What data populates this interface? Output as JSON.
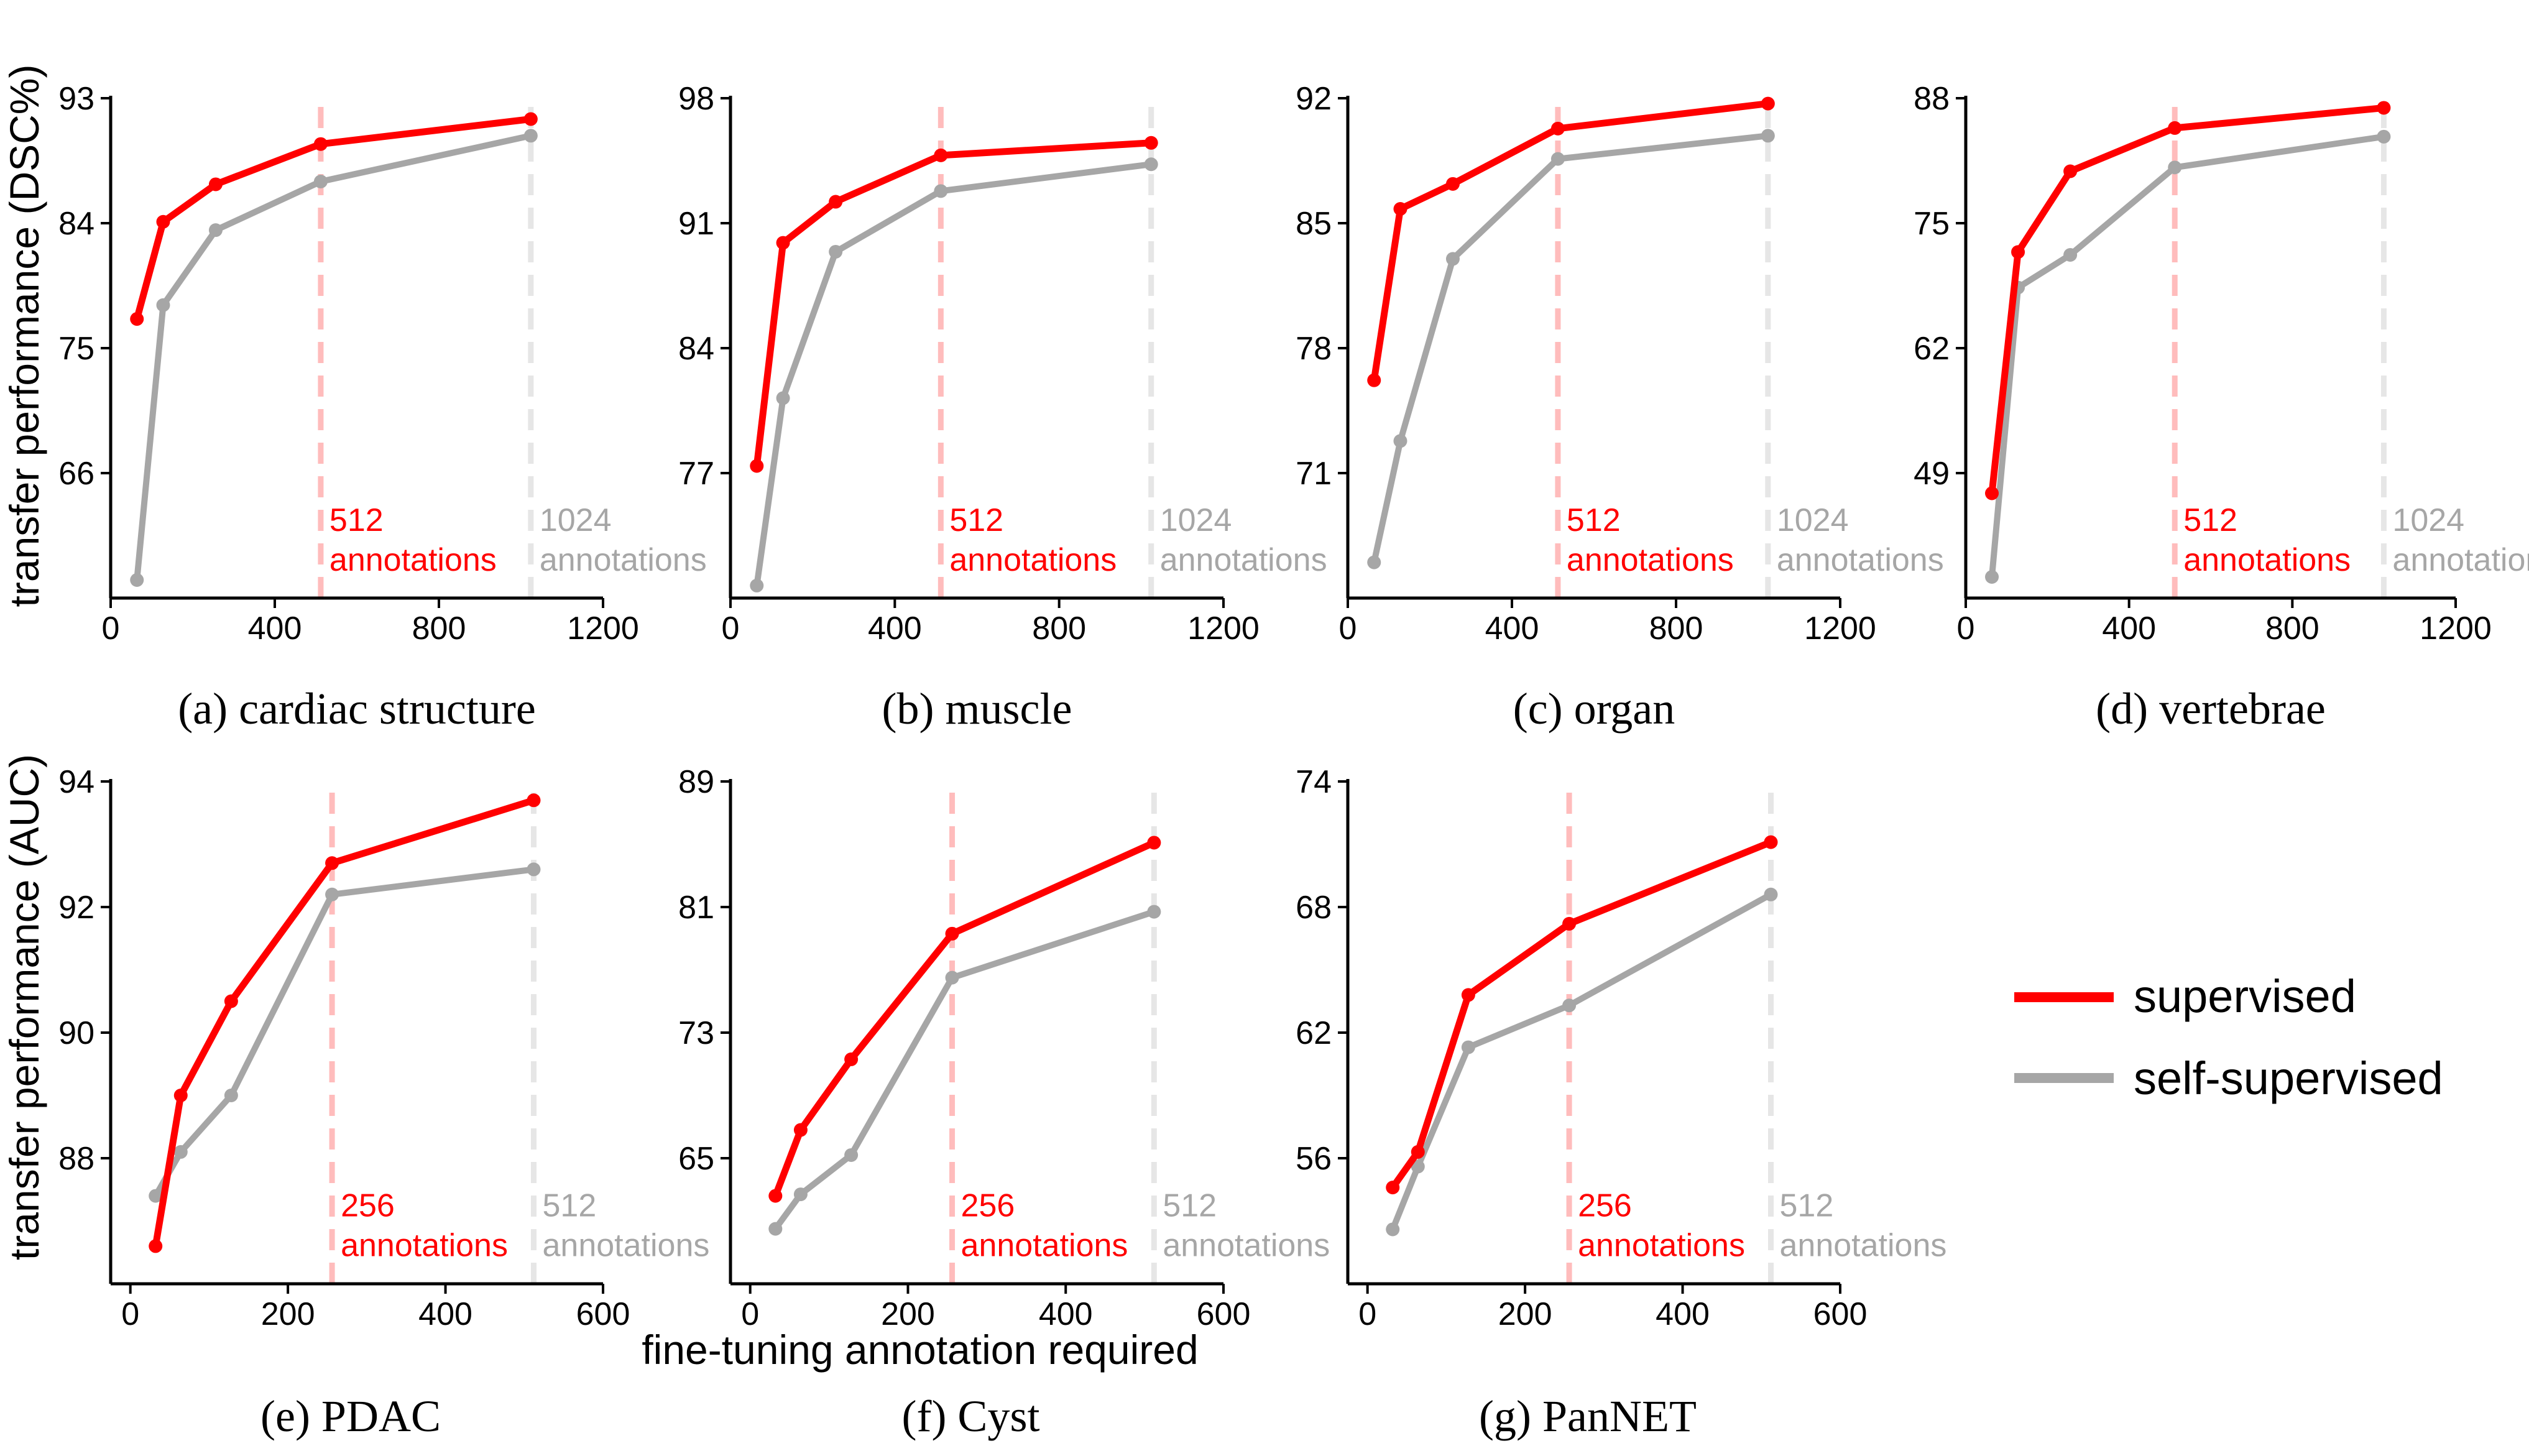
{
  "figure": {
    "ylabel_top": "transfer performance (DSC%)",
    "ylabel_bottom": "transfer performance (AUC)",
    "xlabel": "fine-tuning annotation required",
    "legend": [
      {
        "label": "supervised",
        "color": "#ff0000"
      },
      {
        "label": "self-supervised",
        "color": "#a6a6a6"
      }
    ],
    "colors": {
      "supervised": "#ff0000",
      "self_supervised": "#a6a6a6",
      "marker_red": "#ffbcbc",
      "marker_gray": "#e6e6e6"
    }
  },
  "chart_data": [
    {
      "type": "line",
      "caption": "(a) cardiac structure",
      "xlim": [
        0,
        1200
      ],
      "xticks": [
        "0",
        "400",
        "800",
        "1200"
      ],
      "ylim": [
        57,
        93
      ],
      "yticks": [
        "66",
        "75",
        "84",
        "93"
      ],
      "series": [
        {
          "name": "supervised",
          "x": [
            64,
            128,
            256,
            512,
            1024
          ],
          "values": [
            77.1,
            84.1,
            86.8,
            89.7,
            91.5
          ]
        },
        {
          "name": "self-supervised",
          "x": [
            64,
            128,
            256,
            512,
            1024
          ],
          "values": [
            58.3,
            78.1,
            83.5,
            87.0,
            90.3
          ]
        }
      ],
      "markers": [
        {
          "x": 512,
          "label_line1": "512",
          "label_line2": "annotations",
          "color": "red"
        },
        {
          "x": 1024,
          "label_line1": "1024",
          "label_line2": "annotations",
          "color": "gray"
        }
      ]
    },
    {
      "type": "line",
      "caption": "(b) muscle",
      "xlim": [
        0,
        1200
      ],
      "xticks": [
        "0",
        "400",
        "800",
        "1200"
      ],
      "ylim": [
        70,
        98
      ],
      "yticks": [
        "77",
        "84",
        "91",
        "98"
      ],
      "series": [
        {
          "name": "supervised",
          "x": [
            64,
            128,
            256,
            512,
            1024
          ],
          "values": [
            77.4,
            89.9,
            92.2,
            94.8,
            95.5
          ]
        },
        {
          "name": "self-supervised",
          "x": [
            64,
            128,
            256,
            512,
            1024
          ],
          "values": [
            70.7,
            81.2,
            89.4,
            92.8,
            94.3
          ]
        }
      ],
      "markers": [
        {
          "x": 512,
          "label_line1": "512",
          "label_line2": "annotations",
          "color": "red"
        },
        {
          "x": 1024,
          "label_line1": "1024",
          "label_line2": "annotations",
          "color": "gray"
        }
      ]
    },
    {
      "type": "line",
      "caption": "(c) organ",
      "xlim": [
        0,
        1200
      ],
      "xticks": [
        "0",
        "400",
        "800",
        "1200"
      ],
      "ylim": [
        64,
        92
      ],
      "yticks": [
        "71",
        "78",
        "85",
        "92"
      ],
      "series": [
        {
          "name": "supervised",
          "x": [
            64,
            128,
            256,
            512,
            1024
          ],
          "values": [
            76.2,
            85.8,
            87.2,
            90.3,
            91.7
          ]
        },
        {
          "name": "self-supervised",
          "x": [
            64,
            128,
            256,
            512,
            1024
          ],
          "values": [
            66.0,
            72.8,
            83.0,
            88.6,
            89.9
          ]
        }
      ],
      "markers": [
        {
          "x": 512,
          "label_line1": "512",
          "label_line2": "annotations",
          "color": "red"
        },
        {
          "x": 1024,
          "label_line1": "1024",
          "label_line2": "annotations",
          "color": "gray"
        }
      ]
    },
    {
      "type": "line",
      "caption": "(d) vertebrae",
      "xlim": [
        0,
        1200
      ],
      "xticks": [
        "0",
        "400",
        "800",
        "1200"
      ],
      "ylim": [
        36,
        88
      ],
      "yticks": [
        "49",
        "62",
        "75",
        "88"
      ],
      "series": [
        {
          "name": "supervised",
          "x": [
            64,
            128,
            256,
            512,
            1024
          ],
          "values": [
            46.9,
            72.0,
            80.4,
            84.9,
            87.0
          ]
        },
        {
          "name": "self-supervised",
          "x": [
            64,
            128,
            256,
            512,
            1024
          ],
          "values": [
            38.2,
            68.3,
            71.7,
            80.8,
            84.0
          ]
        }
      ],
      "markers": [
        {
          "x": 512,
          "label_line1": "512",
          "label_line2": "annotations",
          "color": "red"
        },
        {
          "x": 1024,
          "label_line1": "1024",
          "label_line2": "annotations",
          "color": "gray"
        }
      ]
    },
    {
      "type": "line",
      "caption": "(e) PDAC",
      "xlim": [
        -25,
        600
      ],
      "xticks": [
        "0",
        "200",
        "400",
        "600"
      ],
      "ylim": [
        86,
        94
      ],
      "yticks": [
        "88",
        "90",
        "92",
        "94"
      ],
      "series": [
        {
          "name": "supervised",
          "x": [
            32,
            64,
            128,
            256,
            512
          ],
          "values": [
            86.6,
            89.0,
            90.5,
            92.7,
            93.7
          ]
        },
        {
          "name": "self-supervised",
          "x": [
            32,
            64,
            128,
            256,
            512
          ],
          "values": [
            87.4,
            88.1,
            89.0,
            92.2,
            92.6
          ]
        }
      ],
      "markers": [
        {
          "x": 256,
          "label_line1": "256",
          "label_line2": "annotations",
          "color": "red"
        },
        {
          "x": 512,
          "label_line1": "512",
          "label_line2": "annotations",
          "color": "gray"
        }
      ]
    },
    {
      "type": "line",
      "caption": "(f) Cyst",
      "xlim": [
        -25,
        600
      ],
      "xticks": [
        "0",
        "200",
        "400",
        "600"
      ],
      "ylim": [
        57,
        89
      ],
      "yticks": [
        "65",
        "73",
        "81",
        "89"
      ],
      "series": [
        {
          "name": "supervised",
          "x": [
            32,
            64,
            128,
            256,
            512
          ],
          "values": [
            62.6,
            66.8,
            71.3,
            79.3,
            85.1
          ]
        },
        {
          "name": "self-supervised",
          "x": [
            32,
            64,
            128,
            256,
            512
          ],
          "values": [
            60.5,
            62.7,
            65.2,
            76.5,
            80.7
          ]
        }
      ],
      "markers": [
        {
          "x": 256,
          "label_line1": "256",
          "label_line2": "annotations",
          "color": "red"
        },
        {
          "x": 512,
          "label_line1": "512",
          "label_line2": "annotations",
          "color": "gray"
        }
      ]
    },
    {
      "type": "line",
      "caption": "(g) PanNET",
      "xlim": [
        -25,
        600
      ],
      "xticks": [
        "0",
        "200",
        "400",
        "600"
      ],
      "ylim": [
        50,
        74
      ],
      "yticks": [
        "56",
        "62",
        "68",
        "74"
      ],
      "series": [
        {
          "name": "supervised",
          "x": [
            32,
            64,
            128,
            256,
            512
          ],
          "values": [
            54.6,
            56.3,
            63.8,
            67.2,
            71.1
          ]
        },
        {
          "name": "self-supervised",
          "x": [
            32,
            64,
            128,
            256,
            512
          ],
          "values": [
            52.6,
            55.6,
            61.3,
            63.3,
            68.6
          ]
        }
      ],
      "markers": [
        {
          "x": 256,
          "label_line1": "256",
          "label_line2": "annotations",
          "color": "red"
        },
        {
          "x": 512,
          "label_line1": "512",
          "label_line2": "annotations",
          "color": "gray"
        }
      ]
    }
  ]
}
